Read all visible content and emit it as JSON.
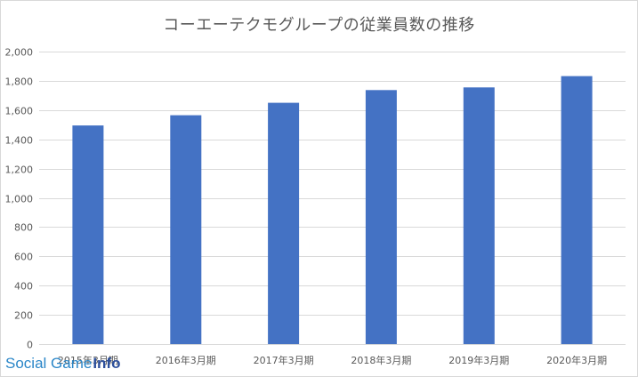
{
  "chart_data": {
    "type": "bar",
    "title": "コーエーテクモグループの従業員数の推移",
    "xlabel": "",
    "ylabel": "",
    "categories": [
      "2015年3月期",
      "2016年3月期",
      "2017年3月期",
      "2018年3月期",
      "2019年3月期",
      "2020年3月期"
    ],
    "values": [
      1495,
      1565,
      1650,
      1737,
      1755,
      1832
    ],
    "ylim": [
      0,
      2000
    ],
    "yticks": [
      0,
      200,
      400,
      600,
      800,
      1000,
      1200,
      1400,
      1600,
      1800,
      2000
    ],
    "ytick_labels": [
      "0",
      "200",
      "400",
      "600",
      "800",
      "1,000",
      "1,200",
      "1,400",
      "1,600",
      "1,800",
      "2,000"
    ],
    "grid": true,
    "bar_color": "#4472c4",
    "grid_color": "#d9d9d9"
  },
  "watermark": {
    "main": "Social Game",
    "accent": "Info"
  }
}
